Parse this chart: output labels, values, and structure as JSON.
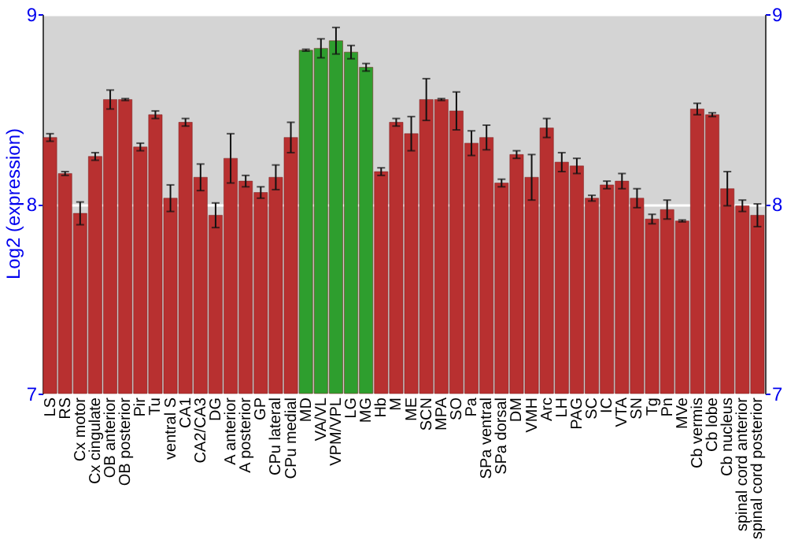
{
  "chart_data": {
    "type": "bar",
    "ylabel": "Log2 (expression)",
    "categories": [
      "LS",
      "RS",
      "Cx motor",
      "Cx cingulate",
      "OB anterior",
      "OB posterior",
      "Pir",
      "Tu",
      "ventral S",
      "CA1",
      "CA2/CA3",
      "DG",
      "A anterior",
      "A posterior",
      "GP",
      "CPu lateral",
      "CPu medial",
      "MD",
      "VA/VL",
      "VPM/VPL",
      "LG",
      "MG",
      "Hb",
      "M",
      "ME",
      "SCN",
      "MPA",
      "SO",
      "Pa",
      "SPa ventral",
      "SPa dorsal",
      "DM",
      "VMH",
      "Arc",
      "LH",
      "PAG",
      "SC",
      "IC",
      "VTA",
      "SN",
      "Tg",
      "Pn",
      "MVe",
      "Cb vermis",
      "Cb lobe",
      "Cb nucleus",
      "spinal cord anterior",
      "spinal cord posterior"
    ],
    "values": [
      8.35,
      8.16,
      7.95,
      8.25,
      8.55,
      8.55,
      8.3,
      8.47,
      8.03,
      8.43,
      8.14,
      7.94,
      8.24,
      8.12,
      8.06,
      8.14,
      8.35,
      8.81,
      8.82,
      8.86,
      8.8,
      8.72,
      8.17,
      8.43,
      8.37,
      8.55,
      8.55,
      8.49,
      8.32,
      8.35,
      8.11,
      8.26,
      8.14,
      8.4,
      8.22,
      8.2,
      8.03,
      8.1,
      8.12,
      8.03,
      7.92,
      7.97,
      7.91,
      8.5,
      8.47,
      8.08,
      7.99,
      7.94
    ],
    "errors": [
      0.02,
      0.01,
      0.06,
      0.02,
      0.05,
      0.005,
      0.02,
      0.02,
      0.07,
      0.02,
      0.07,
      0.065,
      0.13,
      0.03,
      0.03,
      0.065,
      0.08,
      0.005,
      0.05,
      0.07,
      0.035,
      0.02,
      0.02,
      0.02,
      0.09,
      0.11,
      0.005,
      0.1,
      0.065,
      0.065,
      0.02,
      0.02,
      0.12,
      0.05,
      0.05,
      0.04,
      0.015,
      0.02,
      0.04,
      0.05,
      0.025,
      0.05,
      0.005,
      0.03,
      0.01,
      0.09,
      0.03,
      0.06
    ],
    "colors": [
      "#b83030",
      "#b83030",
      "#b83030",
      "#b83030",
      "#b83030",
      "#b83030",
      "#b83030",
      "#b83030",
      "#b83030",
      "#b83030",
      "#b83030",
      "#b83030",
      "#b83030",
      "#b83030",
      "#b83030",
      "#b83030",
      "#b83030",
      "#2e9e2e",
      "#2e9e2e",
      "#2e9e2e",
      "#2e9e2e",
      "#2e9e2e",
      "#b83030",
      "#b83030",
      "#b83030",
      "#b83030",
      "#b83030",
      "#b83030",
      "#b83030",
      "#b83030",
      "#b83030",
      "#b83030",
      "#b83030",
      "#b83030",
      "#b83030",
      "#b83030",
      "#b83030",
      "#b83030",
      "#b83030",
      "#b83030",
      "#b83030",
      "#b83030",
      "#b83030",
      "#b83030",
      "#b83030",
      "#b83030",
      "#b83030",
      "#b83030"
    ],
    "ylim": [
      7,
      9
    ],
    "yticks": [
      7,
      8,
      9
    ],
    "y2lim": [
      7,
      9
    ],
    "y2ticks": [
      7,
      8,
      9
    ],
    "grid": "y"
  }
}
